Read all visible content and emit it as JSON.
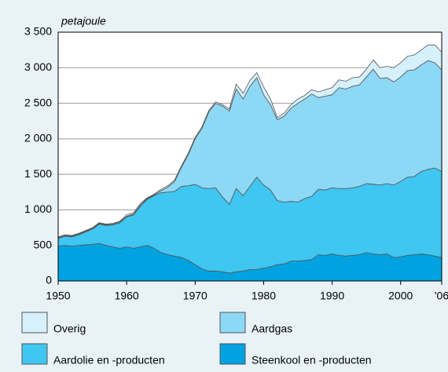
{
  "chart_data": {
    "type": "stacked_area",
    "y_label": "petajoule",
    "x": [
      1950,
      1951,
      1952,
      1953,
      1954,
      1955,
      1956,
      1957,
      1958,
      1959,
      1960,
      1961,
      1962,
      1963,
      1964,
      1965,
      1966,
      1967,
      1968,
      1969,
      1970,
      1971,
      1972,
      1973,
      1974,
      1975,
      1976,
      1977,
      1978,
      1979,
      1980,
      1981,
      1982,
      1983,
      1984,
      1985,
      1986,
      1987,
      1988,
      1989,
      1990,
      1991,
      1992,
      1993,
      1994,
      1995,
      1996,
      1997,
      1998,
      1999,
      2000,
      2001,
      2002,
      2003,
      2004,
      2005,
      2006
    ],
    "series": [
      {
        "name": "Steenkool en -producten",
        "color": "#00a3e0",
        "values": [
          490,
          500,
          490,
          500,
          510,
          515,
          530,
          500,
          480,
          460,
          480,
          460,
          480,
          500,
          460,
          400,
          370,
          350,
          330,
          290,
          230,
          170,
          140,
          140,
          130,
          110,
          130,
          140,
          160,
          160,
          180,
          200,
          230,
          240,
          280,
          280,
          290,
          300,
          370,
          360,
          380,
          360,
          350,
          360,
          370,
          400,
          380,
          370,
          380,
          330,
          340,
          360,
          370,
          380,
          370,
          350,
          330
        ]
      },
      {
        "name": "Aardolie en -producten",
        "color": "#3fc6f1",
        "values": [
          110,
          130,
          130,
          150,
          180,
          215,
          270,
          280,
          310,
          360,
          420,
          470,
          570,
          650,
          740,
          840,
          880,
          910,
          1000,
          1050,
          1130,
          1140,
          1160,
          1170,
          1050,
          970,
          1170,
          1060,
          1170,
          1300,
          1170,
          1080,
          900,
          870,
          840,
          830,
          870,
          890,
          920,
          920,
          930,
          940,
          950,
          950,
          960,
          970,
          980,
          980,
          990,
          1020,
          1060,
          1100,
          1100,
          1160,
          1200,
          1240,
          1210
        ]
      },
      {
        "name": "Aardgas",
        "color": "#8dd8f5",
        "values": [
          10,
          10,
          10,
          10,
          10,
          10,
          10,
          10,
          10,
          10,
          10,
          10,
          20,
          10,
          10,
          30,
          70,
          140,
          270,
          440,
          640,
          840,
          1080,
          1190,
          1280,
          1310,
          1400,
          1360,
          1410,
          1400,
          1270,
          1200,
          1140,
          1210,
          1310,
          1390,
          1400,
          1440,
          1290,
          1320,
          1310,
          1420,
          1400,
          1430,
          1430,
          1500,
          1620,
          1500,
          1490,
          1450,
          1470,
          1500,
          1500,
          1500,
          1530,
          1480,
          1430
        ]
      },
      {
        "name": "Overig",
        "color": "#d6f1fb",
        "values": [
          10,
          10,
          10,
          10,
          10,
          10,
          10,
          10,
          10,
          10,
          20,
          20,
          20,
          10,
          10,
          20,
          20,
          20,
          20,
          20,
          20,
          20,
          20,
          20,
          20,
          30,
          70,
          80,
          80,
          70,
          110,
          80,
          30,
          40,
          50,
          60,
          50,
          60,
          80,
          90,
          100,
          110,
          110,
          120,
          110,
          110,
          130,
          150,
          160,
          200,
          200,
          200,
          210,
          210,
          220,
          250,
          250
        ]
      }
    ],
    "xlim": [
      1950,
      2006
    ],
    "xticks": [
      1950,
      1960,
      1970,
      1980,
      1990,
      2000,
      {
        "value": 2006,
        "label": "'06"
      }
    ],
    "ylim": [
      0,
      3500
    ],
    "yticks": [
      0,
      500,
      {
        "value": 1000,
        "label": "1 000"
      },
      {
        "value": 1500,
        "label": "1 500"
      },
      {
        "value": 2000,
        "label": "2 000"
      },
      {
        "value": 2500,
        "label": "2 500"
      },
      {
        "value": 3000,
        "label": "3 000"
      },
      {
        "value": 3500,
        "label": "3 500"
      }
    ],
    "grid": true
  }
}
